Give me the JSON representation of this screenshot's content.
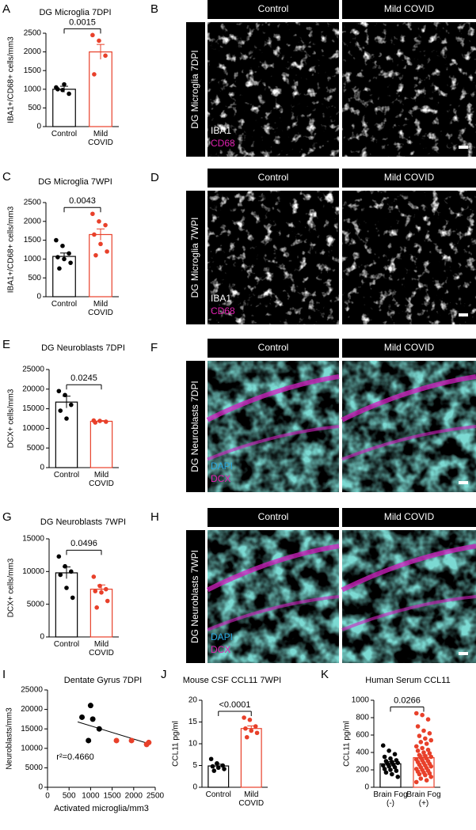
{
  "chart_data": [
    {
      "type": "bar",
      "label": "A",
      "title": "DG Microglia 7DPI",
      "y_label": "IBA1+/CD68+ cells/mm3",
      "categories": [
        "Control",
        "Mild COVID"
      ],
      "colors": [
        "#000000",
        "#e8402a"
      ],
      "values": [
        1000,
        2000
      ],
      "errors": [
        80,
        200
      ],
      "points": [
        [
          1050,
          980,
          880,
          1000,
          1130
        ],
        [
          2450,
          2300,
          1900,
          1400
        ]
      ],
      "ylim": [
        0,
        2500
      ],
      "yticks": [
        0,
        500,
        1000,
        1500,
        2000,
        2500
      ],
      "annotation": "0.0015"
    },
    {
      "type": "bar",
      "label": "C",
      "title": "DG Microglia 7WPI",
      "y_label": "IBA1+/CD68+ cells/mm3",
      "categories": [
        "Control",
        "Mild COVID"
      ],
      "colors": [
        "#000000",
        "#e8402a"
      ],
      "values": [
        1070,
        1650
      ],
      "errors": [
        90,
        150
      ],
      "points": [
        [
          1500,
          1350,
          1150,
          1050,
          1000,
          900,
          750
        ],
        [
          2200,
          2000,
          1900,
          1650,
          1400,
          1200,
          1100
        ]
      ],
      "ylim": [
        0,
        2500
      ],
      "yticks": [
        0,
        500,
        1000,
        1500,
        2000,
        2500
      ],
      "annotation": "0.0043"
    },
    {
      "type": "bar",
      "label": "E",
      "title": "DG Neuroblasts 7DPI",
      "y_label": "DCX+ cells/mm3",
      "categories": [
        "Control",
        "Mild COVID"
      ],
      "colors": [
        "#000000",
        "#e8402a"
      ],
      "values": [
        16700,
        11800
      ],
      "errors": [
        1500,
        200
      ],
      "points": [
        [
          19500,
          18500,
          16000,
          14500,
          12500
        ],
        [
          12000,
          11900,
          11700,
          11500
        ]
      ],
      "ylim": [
        0,
        25000
      ],
      "yticks": [
        0,
        5000,
        10000,
        15000,
        20000,
        25000
      ],
      "annotation": "0.0245"
    },
    {
      "type": "bar",
      "label": "G",
      "title": "DG Neuroblasts 7WPI",
      "y_label": "DCX+ cells/mm3",
      "categories": [
        "Control",
        "Mild COVID"
      ],
      "colors": [
        "#000000",
        "#e8402a"
      ],
      "values": [
        9800,
        7300
      ],
      "errors": [
        900,
        650
      ],
      "points": [
        [
          12300,
          10800,
          10000,
          9500,
          7500,
          6000
        ],
        [
          9200,
          7800,
          7300,
          7000,
          6800,
          5500,
          4500
        ]
      ],
      "ylim": [
        0,
        15000
      ],
      "yticks": [
        0,
        5000,
        10000,
        15000
      ],
      "annotation": "0.0496"
    },
    {
      "type": "scatter",
      "label": "I",
      "title": "Dentate Gyrus 7DPI",
      "x_label": "Activated microglia/mm3",
      "y_label": "Neuroblasts/mm3",
      "series": [
        {
          "color": "#000000",
          "x": [
            800,
            950,
            1000,
            1050,
            1200
          ],
          "y": [
            18000,
            12000,
            21000,
            17500,
            15000
          ]
        },
        {
          "color": "#e8402a",
          "x": [
            1600,
            1950,
            2300,
            2350
          ],
          "y": [
            12000,
            12000,
            11000,
            11500
          ]
        }
      ],
      "fit_x": [
        700,
        2350
      ],
      "fit_y": [
        16800,
        11200
      ],
      "xlim": [
        0,
        2500
      ],
      "xticks": [
        0,
        500,
        1000,
        1500,
        2000,
        2500
      ],
      "ylim": [
        0,
        25000
      ],
      "yticks": [
        0,
        5000,
        10000,
        15000,
        20000,
        25000
      ],
      "annotation": "r²=0.4660"
    },
    {
      "type": "bar",
      "label": "J",
      "title": "Mouse CSF CCL11 7WPI",
      "y_label": "CCL11 pg/ml",
      "categories": [
        "Control",
        "Mild COVID"
      ],
      "colors": [
        "#000000",
        "#e8402a"
      ],
      "values": [
        4.9,
        13.5
      ],
      "errors": [
        0.4,
        0.6
      ],
      "points": [
        [
          6.5,
          5.5,
          5,
          4.8,
          4.5,
          4.2,
          3.8
        ],
        [
          16,
          15.5,
          14,
          13.5,
          13,
          12.5,
          11.5
        ]
      ],
      "ylim": [
        0,
        20
      ],
      "yticks": [
        0,
        5,
        10,
        15,
        20
      ],
      "annotation": "<0.0001"
    },
    {
      "type": "bar",
      "label": "K",
      "title": "Human Serum CCL11",
      "y_label": "CCL11 pg/ml",
      "categories": [
        "Brain Fog (-)",
        "Brain Fog (+)"
      ],
      "colors": [
        "#000000",
        "#e8402a"
      ],
      "values": [
        270,
        340
      ],
      "errors": [
        25,
        30
      ],
      "points": [
        [
          480,
          420,
          380,
          350,
          330,
          310,
          300,
          290,
          280,
          270,
          260,
          250,
          240,
          230,
          210,
          200,
          190,
          170,
          150,
          120
        ],
        [
          850,
          830,
          780,
          700,
          650,
          620,
          590,
          560,
          540,
          520,
          500,
          470,
          450,
          430,
          420,
          400,
          390,
          370,
          360,
          350,
          340,
          330,
          320,
          310,
          300,
          290,
          280,
          270,
          260,
          250,
          240,
          230,
          220,
          210,
          200,
          190,
          180,
          170,
          160,
          150,
          140,
          120,
          100,
          80,
          60
        ]
      ],
      "ylim": [
        0,
        1000
      ],
      "yticks": [
        0,
        200,
        400,
        600,
        800,
        1000
      ],
      "annotation": "0.0266"
    }
  ],
  "image_panels": [
    {
      "label": "B",
      "side_label": "DG Microglia 7DPI",
      "columns": [
        "Control",
        "Mild COVID"
      ],
      "stains": [
        "IBA1",
        "CD68"
      ],
      "stain_colors": [
        "#ffffff",
        "#e020b0"
      ]
    },
    {
      "label": "D",
      "side_label": "DG Microglia 7WPI",
      "columns": [
        "Control",
        "Mild COVID"
      ],
      "stains": [
        "IBA1",
        "CD68"
      ],
      "stain_colors": [
        "#ffffff",
        "#e020b0"
      ]
    },
    {
      "label": "F",
      "side_label": "DG Neuroblasts 7DPI",
      "columns": [
        "Control",
        "Mild COVID"
      ],
      "stains": [
        "DAPI",
        "DCX"
      ],
      "stain_colors": [
        "#2aa8e0",
        "#e020b0"
      ]
    },
    {
      "label": "H",
      "side_label": "DG Neuroblasts 7WPI",
      "columns": [
        "Control",
        "Mild COVID"
      ],
      "stains": [
        "DAPI",
        "DCX"
      ],
      "stain_colors": [
        "#2aa8e0",
        "#e020b0"
      ]
    }
  ]
}
